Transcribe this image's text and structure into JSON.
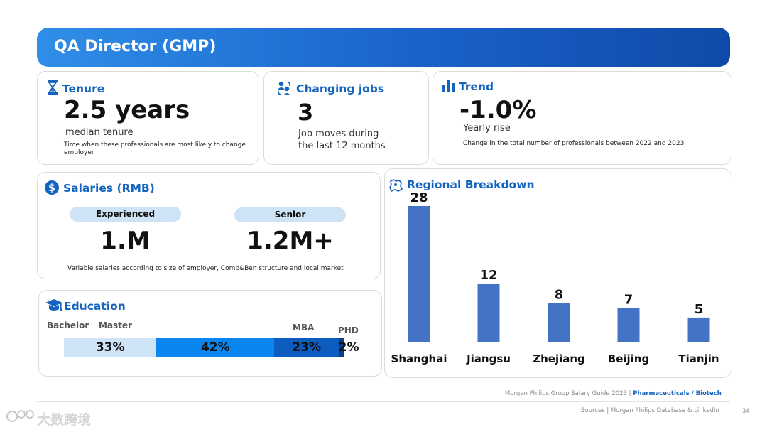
{
  "header": {
    "title": "QA Director (GMP)"
  },
  "tenure": {
    "title": "Tenure",
    "value": "2.5 years",
    "subtitle": "median tenure",
    "note": "Time when these professionals are most likely to  change employer"
  },
  "changing_jobs": {
    "title": "Changing jobs",
    "value": "3",
    "line1": "Job moves during",
    "line2": "the last 12 months"
  },
  "trend": {
    "title": "Trend",
    "value": "-1.0%",
    "subtitle": "Yearly rise",
    "note": "Change in the total number of professionals between 2022 and 2023"
  },
  "salaries": {
    "title": "Salaries (RMB)",
    "experienced_label": "Experienced",
    "experienced_value": "1.M",
    "senior_label": "Senior",
    "senior_value": "1.2M+",
    "note": "Variable salaries according to size of employer, Comp&Ben structure and local market"
  },
  "education": {
    "title": "Education",
    "segments": [
      {
        "label": "Bachelor",
        "value": "33%",
        "share": 33,
        "color": "#cfe3f7"
      },
      {
        "label": "Master",
        "value": "42%",
        "share": 42,
        "color": "#0a86f0"
      },
      {
        "label": "MBA",
        "value": "23%",
        "share": 23,
        "color": "#0d5cbf"
      },
      {
        "label": "PHD",
        "value": "2%",
        "share": 2,
        "color": "#0b3f8c"
      }
    ]
  },
  "regional": {
    "title": "Regional Breakdown"
  },
  "chart_data": {
    "type": "bar",
    "title": "Regional Breakdown",
    "categories": [
      "Shanghai",
      "Jiangsu",
      "Zhejiang",
      "Beijing",
      "Tianjin"
    ],
    "values": [
      28,
      12,
      8,
      7,
      5
    ],
    "color": "#4472c4",
    "ylim": [
      0,
      28
    ]
  },
  "footer": {
    "guide": "Morgan Philips Group Salary Guide 2023 | ",
    "sector": "Pharmaceuticals / Biotech",
    "sources": "Sources | Morgan Philips Database & LinkedIn",
    "page": "34",
    "watermark": "大数跨境"
  },
  "colors": {
    "accent": "#1565c0",
    "bar": "#4472c4"
  }
}
